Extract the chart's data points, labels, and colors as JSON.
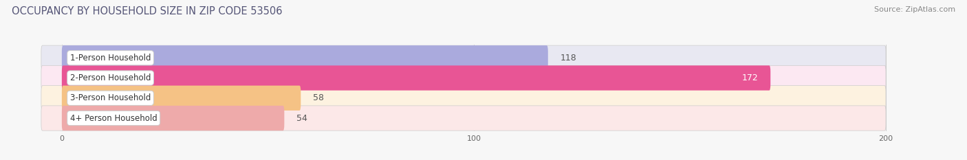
{
  "title": "OCCUPANCY BY HOUSEHOLD SIZE IN ZIP CODE 53506",
  "source": "Source: ZipAtlas.com",
  "categories": [
    "1-Person Household",
    "2-Person Household",
    "3-Person Household",
    "4+ Person Household"
  ],
  "values": [
    118,
    172,
    58,
    54
  ],
  "bar_colors": [
    "#aaaadd",
    "#e85595",
    "#f5c285",
    "#eeaaaa"
  ],
  "bar_bg_colors": [
    "#e8e8f2",
    "#fce8f2",
    "#fdf2e0",
    "#fce8e8"
  ],
  "label_colors": [
    "#444444",
    "#ffffff",
    "#444444",
    "#444444"
  ],
  "xlim": [
    -15,
    215
  ],
  "data_xlim": [
    0,
    200
  ],
  "xticks": [
    0,
    100,
    200
  ],
  "figsize": [
    14.06,
    2.33
  ],
  "dpi": 100,
  "title_fontsize": 10.5,
  "bar_label_fontsize": 9,
  "category_fontsize": 8.5,
  "source_fontsize": 8
}
